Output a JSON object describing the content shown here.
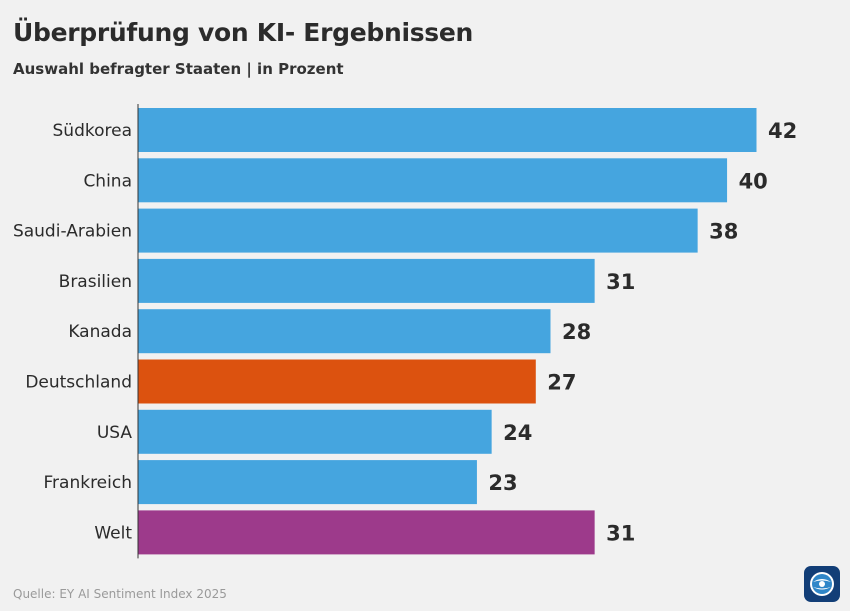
{
  "header": {
    "title": "Überprüfung von KI- Ergebnissen",
    "subtitle": "Auswahl befragter Staaten | in Prozent"
  },
  "footer": {
    "source": "Quelle: EY AI Sentiment Index 2025",
    "logo_icon": "tagesschau-logo-icon"
  },
  "colors": {
    "default": "#45a5df",
    "deutschland": "#dc520f",
    "welt": "#9d3a8b"
  },
  "chart_data": {
    "type": "bar",
    "orientation": "horizontal",
    "categories": [
      "Südkorea",
      "China",
      "Saudi-Arabien",
      "Brasilien",
      "Kanada",
      "Deutschland",
      "USA",
      "Frankreich",
      "Welt"
    ],
    "values": [
      42,
      40,
      38,
      31,
      28,
      27,
      24,
      23,
      31
    ],
    "bar_colors": [
      "#45a5df",
      "#45a5df",
      "#45a5df",
      "#45a5df",
      "#45a5df",
      "#dc520f",
      "#45a5df",
      "#45a5df",
      "#9d3a8b"
    ],
    "xlim": [
      0,
      42
    ],
    "grid": false,
    "data_labels": true
  }
}
